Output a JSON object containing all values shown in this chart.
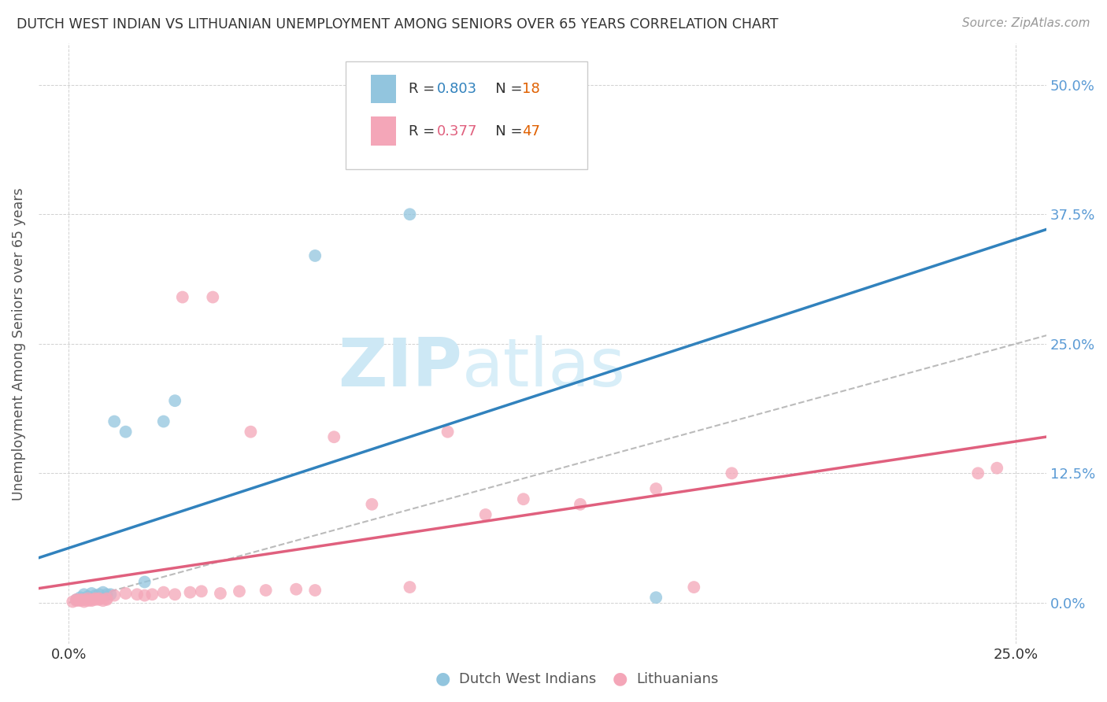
{
  "title": "DUTCH WEST INDIAN VS LITHUANIAN UNEMPLOYMENT AMONG SENIORS OVER 65 YEARS CORRELATION CHART",
  "source": "Source: ZipAtlas.com",
  "ylabel_label": "Unemployment Among Seniors over 65 years",
  "legend_blue_r": "0.803",
  "legend_blue_n": "18",
  "legend_pink_r": "0.377",
  "legend_pink_n": "47",
  "legend_label_blue": "Dutch West Indians",
  "legend_label_pink": "Lithuanians",
  "blue_scatter_color": "#92c5de",
  "pink_scatter_color": "#f4a6b8",
  "blue_line_color": "#3182bd",
  "pink_line_color": "#e0607e",
  "diagonal_color": "#bbbbbb",
  "watermark_zip": "ZIP",
  "watermark_atlas": "atlas",
  "watermark_color": "#cde8f5",
  "r_value_color": "#3182bd",
  "n_value_color_blue": "#e06000",
  "n_value_color_pink": "#e06000",
  "xlim": [
    -0.008,
    0.258
  ],
  "ylim": [
    -0.04,
    0.54
  ],
  "xticks": [
    0.0,
    0.25
  ],
  "yticks": [
    0.0,
    0.125,
    0.25,
    0.375,
    0.5
  ],
  "xtick_labels": [
    "0.0%",
    "25.0%"
  ],
  "ytick_labels_right": [
    "0.0%",
    "12.5%",
    "25.0%",
    "37.5%",
    "50.0%"
  ],
  "blue_x": [
    0.002,
    0.003,
    0.004,
    0.005,
    0.006,
    0.007,
    0.008,
    0.009,
    0.01,
    0.011,
    0.012,
    0.015,
    0.02,
    0.025,
    0.028,
    0.065,
    0.09,
    0.155
  ],
  "blue_y": [
    0.003,
    0.005,
    0.008,
    0.006,
    0.009,
    0.007,
    0.008,
    0.01,
    0.008,
    0.008,
    0.175,
    0.165,
    0.02,
    0.175,
    0.195,
    0.335,
    0.375,
    0.005
  ],
  "pink_x": [
    0.001,
    0.002,
    0.002,
    0.003,
    0.003,
    0.004,
    0.004,
    0.005,
    0.005,
    0.006,
    0.006,
    0.007,
    0.007,
    0.008,
    0.008,
    0.009,
    0.01,
    0.01,
    0.012,
    0.015,
    0.018,
    0.02,
    0.022,
    0.025,
    0.028,
    0.03,
    0.032,
    0.035,
    0.038,
    0.04,
    0.045,
    0.048,
    0.052,
    0.06,
    0.065,
    0.07,
    0.08,
    0.09,
    0.1,
    0.11,
    0.12,
    0.135,
    0.155,
    0.165,
    0.175,
    0.24,
    0.245
  ],
  "pink_y": [
    0.001,
    0.002,
    0.003,
    0.002,
    0.003,
    0.001,
    0.003,
    0.002,
    0.004,
    0.002,
    0.003,
    0.003,
    0.004,
    0.003,
    0.004,
    0.002,
    0.003,
    0.004,
    0.007,
    0.009,
    0.008,
    0.007,
    0.008,
    0.01,
    0.008,
    0.295,
    0.01,
    0.011,
    0.295,
    0.009,
    0.011,
    0.165,
    0.012,
    0.013,
    0.012,
    0.16,
    0.095,
    0.015,
    0.165,
    0.085,
    0.1,
    0.095,
    0.11,
    0.015,
    0.125,
    0.125,
    0.13
  ]
}
